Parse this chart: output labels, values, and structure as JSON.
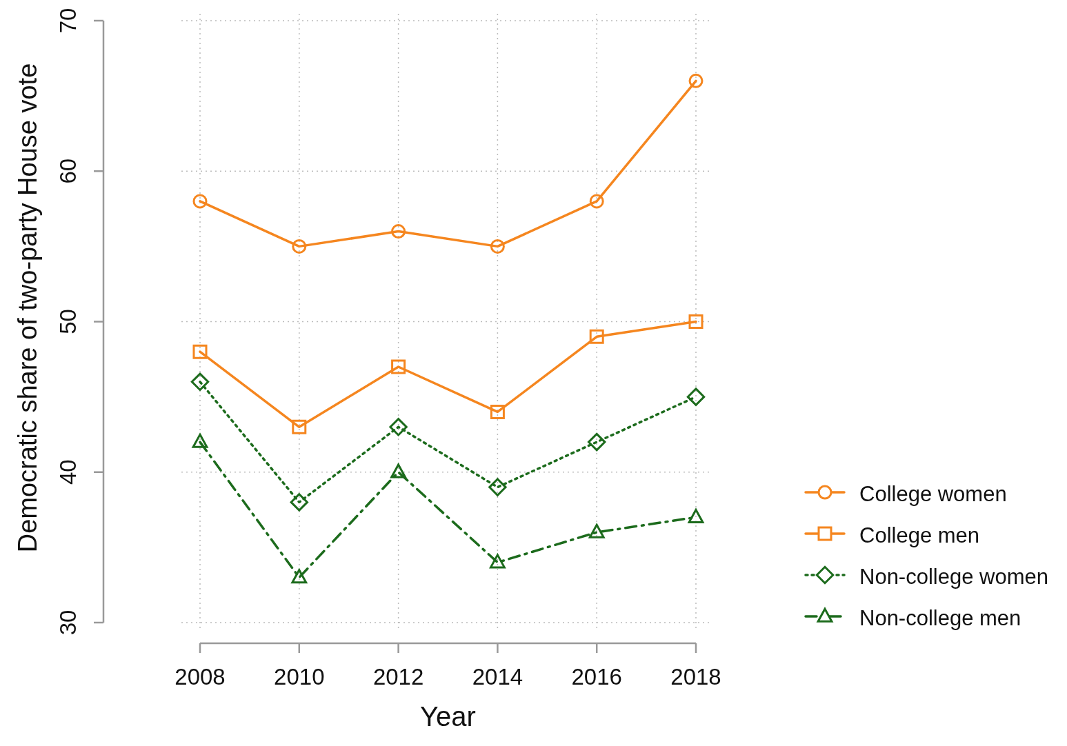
{
  "chart_data": {
    "type": "line",
    "xlabel": "Year",
    "ylabel": "Democratic share of two-party House vote",
    "x": [
      2008,
      2010,
      2012,
      2014,
      2016,
      2018
    ],
    "xlim": [
      2008,
      2018
    ],
    "xticks": [
      2008,
      2010,
      2012,
      2014,
      2016,
      2018
    ],
    "ylim": [
      30,
      70
    ],
    "yticks": [
      30,
      40,
      50,
      60,
      70
    ],
    "grid": true,
    "legend": "right",
    "series": [
      {
        "name": "College women",
        "color": "#f5861f",
        "values": [
          58,
          55,
          56,
          55,
          58,
          66
        ],
        "marker": "circle",
        "line_style": "solid"
      },
      {
        "name": "College men",
        "color": "#f5861f",
        "values": [
          48,
          43,
          47,
          44,
          49,
          50
        ],
        "marker": "square",
        "line_style": "solid"
      },
      {
        "name": "Non-college women",
        "color": "#1c6b1c",
        "values": [
          46,
          38,
          43,
          39,
          42,
          45
        ],
        "marker": "diamond",
        "line_style": "dotted"
      },
      {
        "name": "Non-college men",
        "color": "#1c6b1c",
        "values": [
          42,
          33,
          40,
          34,
          36,
          37
        ],
        "marker": "triangle",
        "line_style": "dashed"
      }
    ]
  }
}
